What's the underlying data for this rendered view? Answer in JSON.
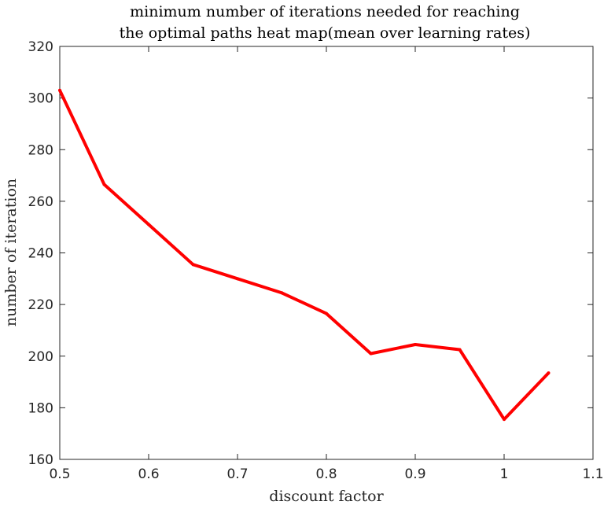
{
  "chart_data": {
    "type": "line",
    "title": [
      "minimum number of iterations needed for reaching",
      "the optimal paths heat map(mean over learning rates)"
    ],
    "xlabel": "discount factor",
    "ylabel": "number of iteration",
    "xlim": [
      0.5,
      1.1
    ],
    "ylim": [
      160,
      320
    ],
    "xticks": [
      0.5,
      0.6,
      0.7,
      0.8,
      0.9,
      1,
      1.1
    ],
    "xtick_labels": [
      "0.5",
      "0.6",
      "0.7",
      "0.8",
      "0.9",
      "1",
      "1.1"
    ],
    "yticks": [
      160,
      180,
      200,
      220,
      240,
      260,
      280,
      300,
      320
    ],
    "ytick_labels": [
      "160",
      "180",
      "200",
      "220",
      "240",
      "260",
      "280",
      "300",
      "320"
    ],
    "grid": false,
    "series": [
      {
        "color": "#ff0000",
        "x": [
          0.5,
          0.55,
          0.6,
          0.65,
          0.7,
          0.75,
          0.8,
          0.85,
          0.9,
          0.95,
          1.0,
          1.05
        ],
        "y": [
          303,
          266.5,
          251,
          235.5,
          230,
          224.5,
          216.5,
          201,
          204.5,
          202.5,
          175.5,
          193.5
        ]
      }
    ]
  }
}
